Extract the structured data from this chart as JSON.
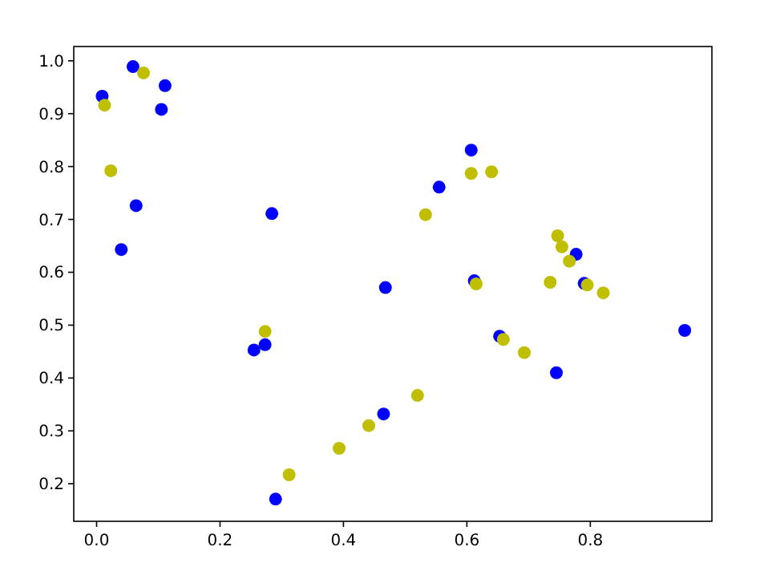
{
  "chart_data": {
    "type": "scatter",
    "xlim": [
      -0.037,
      0.997
    ],
    "ylim": [
      0.129,
      1.027
    ],
    "xticks": [
      {
        "value": 0,
        "label": "0.0"
      },
      0.2,
      0.4,
      0.6,
      0.8
    ],
    "yticks": [
      0.2,
      0.3,
      0.4,
      0.5,
      0.6,
      0.7,
      0.8,
      0.9,
      {
        "value": 1,
        "label": "1.0"
      }
    ],
    "marker": "circle",
    "grid": false,
    "series": [
      {
        "color": "#0000ff",
        "x": [
          0.009,
          0.059,
          0.111,
          0.105,
          0.064,
          0.04,
          0.284,
          0.255,
          0.273,
          0.29,
          0.468,
          0.465,
          0.607,
          0.555,
          0.612,
          0.653,
          0.745,
          0.777,
          0.79,
          0.953
        ],
        "values": [
          0.933,
          0.989,
          0.953,
          0.908,
          0.726,
          0.643,
          0.711,
          0.453,
          0.463,
          0.171,
          0.571,
          0.332,
          0.831,
          0.761,
          0.584,
          0.479,
          0.41,
          0.634,
          0.579,
          0.49
        ]
      },
      {
        "color": "#bfbf00",
        "x": [
          0.013,
          0.076,
          0.023,
          0.273,
          0.312,
          0.393,
          0.441,
          0.52,
          0.533,
          0.607,
          0.64,
          0.615,
          0.659,
          0.693,
          0.735,
          0.747,
          0.754,
          0.766,
          0.795,
          0.821
        ],
        "values": [
          0.916,
          0.977,
          0.792,
          0.488,
          0.217,
          0.267,
          0.31,
          0.367,
          0.709,
          0.787,
          0.79,
          0.578,
          0.473,
          0.448,
          0.581,
          0.669,
          0.648,
          0.621,
          0.576,
          0.561
        ]
      }
    ]
  }
}
